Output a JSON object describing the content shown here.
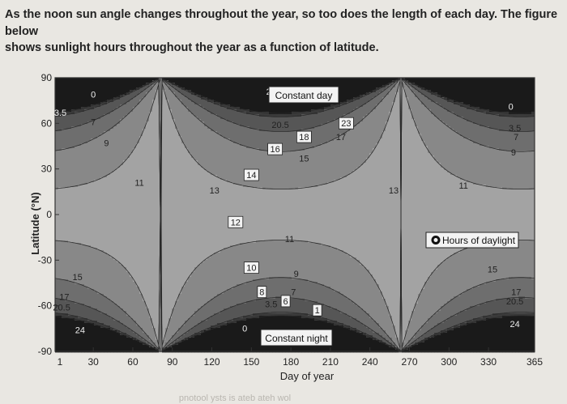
{
  "caption": {
    "line1": "As the noon sun angle changes throughout the year, so too does the length of each day. The figure below",
    "line2": "shows sunlight hours throughout the year as a function of latitude."
  },
  "chart_data": {
    "type": "contour",
    "xlabel": "Day of year",
    "ylabel": "Latitude (°N)",
    "xlim": [
      1,
      365
    ],
    "ylim": [
      -90,
      90
    ],
    "xticks": [
      "1",
      "30",
      "60",
      "90",
      "120",
      "150",
      "180",
      "210",
      "240",
      "270",
      "300",
      "330",
      "365"
    ],
    "yticks": [
      "90",
      "60",
      "30",
      "0",
      "-30",
      "-60",
      "-90"
    ],
    "legend": "Hours of daylight",
    "annotations": {
      "constant_day": "Constant day",
      "constant_night": "Constant night"
    },
    "contour_levels_hours": [
      0,
      1,
      3.5,
      6,
      7,
      8,
      9,
      10,
      11,
      12,
      13,
      14,
      15,
      16,
      17,
      18,
      20.5,
      23,
      24
    ],
    "labels": [
      {
        "text": "0",
        "day": 30,
        "lat": 78
      },
      {
        "text": "3.5",
        "day": 5,
        "lat": 66
      },
      {
        "text": "7",
        "day": 30,
        "lat": 60
      },
      {
        "text": "9",
        "day": 40,
        "lat": 46
      },
      {
        "text": "11",
        "day": 65,
        "lat": 20
      },
      {
        "text": "13",
        "day": 122,
        "lat": 15
      },
      {
        "text": "24",
        "day": 165,
        "lat": 80
      },
      {
        "text": "20.5",
        "day": 172,
        "lat": 58
      },
      {
        "text": "23",
        "day": 222,
        "lat": 59
      },
      {
        "text": "18",
        "day": 190,
        "lat": 50
      },
      {
        "text": "17",
        "day": 218,
        "lat": 50
      },
      {
        "text": "16",
        "day": 168,
        "lat": 42
      },
      {
        "text": "15",
        "day": 190,
        "lat": 36
      },
      {
        "text": "14",
        "day": 150,
        "lat": 25
      },
      {
        "text": "13",
        "day": 258,
        "lat": 15
      },
      {
        "text": "11",
        "day": 311,
        "lat": 18
      },
      {
        "text": "0",
        "day": 347,
        "lat": 70
      },
      {
        "text": "3.5",
        "day": 350,
        "lat": 56
      },
      {
        "text": "7",
        "day": 351,
        "lat": 50
      },
      {
        "text": "9",
        "day": 349,
        "lat": 40
      },
      {
        "text": "12",
        "day": 138,
        "lat": -6
      },
      {
        "text": "11",
        "day": 179,
        "lat": -17
      },
      {
        "text": "10",
        "day": 150,
        "lat": -36
      },
      {
        "text": "9",
        "day": 184,
        "lat": -40
      },
      {
        "text": "8",
        "day": 158,
        "lat": -52
      },
      {
        "text": "7",
        "day": 182,
        "lat": -52
      },
      {
        "text": "3.5",
        "day": 165,
        "lat": -60
      },
      {
        "text": "6",
        "day": 176,
        "lat": -58
      },
      {
        "text": "1",
        "day": 200,
        "lat": -64
      },
      {
        "text": "0",
        "day": 145,
        "lat": -76
      },
      {
        "text": "15",
        "day": 18,
        "lat": -42
      },
      {
        "text": "17",
        "day": 8,
        "lat": -55
      },
      {
        "text": "20.5",
        "day": 6,
        "lat": -62
      },
      {
        "text": "24",
        "day": 20,
        "lat": -77
      },
      {
        "text": "15",
        "day": 333,
        "lat": -37
      },
      {
        "text": "17",
        "day": 351,
        "lat": -52
      },
      {
        "text": "20.5",
        "day": 350,
        "lat": -58
      },
      {
        "text": "24",
        "day": 350,
        "lat": -73
      }
    ]
  },
  "footer_text": "pnotool ysts is ateb ateh wol"
}
